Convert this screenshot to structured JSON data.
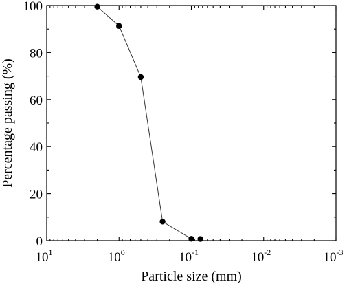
{
  "chart_data": {
    "type": "line",
    "xlabel": "Particle size (mm)",
    "ylabel": "Percentage passing (%)",
    "x_scale": "log",
    "x_reversed": true,
    "xlim": [
      10,
      0.001
    ],
    "ylim": [
      0,
      100
    ],
    "x_ticks": [
      {
        "base": "10",
        "exp": "1",
        "value": 10
      },
      {
        "base": "10",
        "exp": "0",
        "value": 1
      },
      {
        "base": "10",
        "exp": "-1",
        "value": 0.1
      },
      {
        "base": "10",
        "exp": "-2",
        "value": 0.01
      },
      {
        "base": "10",
        "exp": "-3",
        "value": 0.001
      }
    ],
    "y_ticks": [
      {
        "label": "0",
        "value": 0
      },
      {
        "label": "20",
        "value": 20
      },
      {
        "label": "40",
        "value": 40
      },
      {
        "label": "60",
        "value": 60
      },
      {
        "label": "80",
        "value": 80
      },
      {
        "label": "100",
        "value": 100
      }
    ],
    "grid": false,
    "legend": "none",
    "series": [
      {
        "x": [
          2,
          1,
          0.5,
          0.25,
          0.1,
          0.075
        ],
        "y": [
          99.5,
          91.3,
          69.6,
          8.1,
          0.8,
          0.7
        ],
        "color": "#000000"
      }
    ]
  }
}
